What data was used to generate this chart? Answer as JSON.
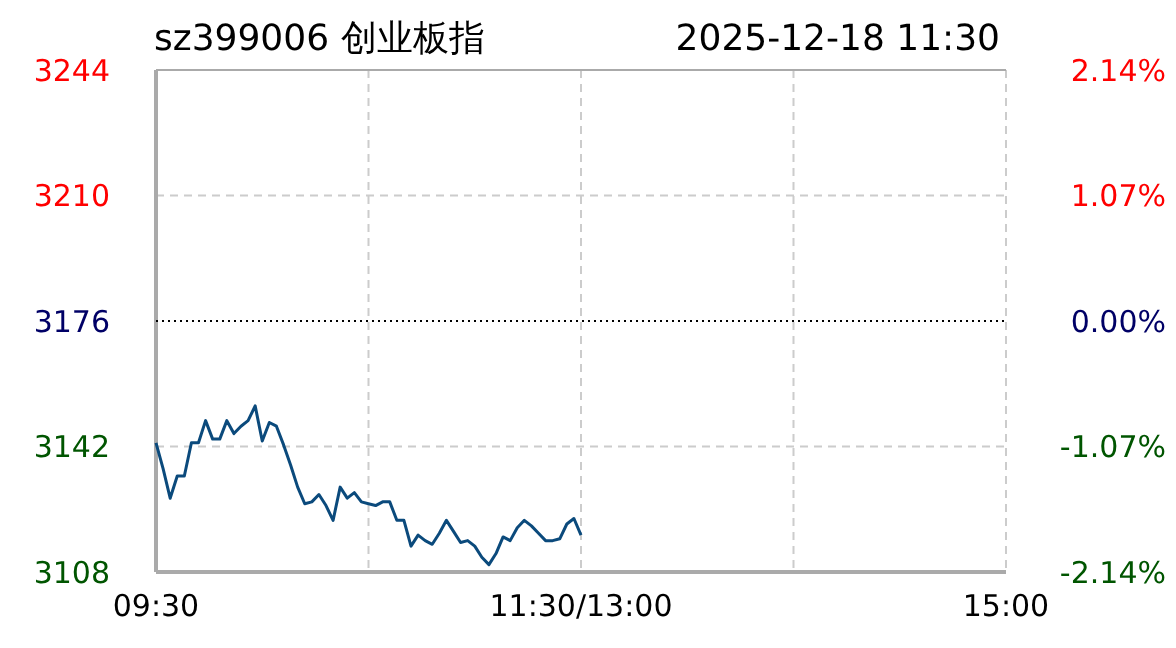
{
  "chart_data": {
    "type": "line",
    "title": "sz399006 创业板指",
    "subtitle": "2025-12-18  11:30",
    "categories": [
      "09:30",
      null,
      null,
      null,
      null,
      null,
      null,
      null,
      null,
      null,
      null,
      null,
      null,
      null,
      null,
      null,
      null,
      null,
      null,
      null,
      null,
      null,
      null,
      null,
      null,
      null,
      null,
      null,
      null,
      null,
      null,
      null,
      null,
      null,
      null,
      null,
      null,
      null,
      null,
      null,
      null,
      null,
      null,
      null,
      null,
      null,
      null,
      null,
      null,
      null,
      null,
      null,
      null,
      null,
      null,
      null,
      null,
      null,
      null,
      null,
      "11:30/13:00",
      null,
      null,
      null,
      null,
      null,
      null,
      null,
      null,
      null,
      null,
      null,
      null,
      null,
      null,
      null,
      null,
      null,
      null,
      null,
      null,
      null,
      null,
      null,
      null,
      null,
      null,
      null,
      null,
      null,
      null,
      null,
      null,
      null,
      null,
      null,
      null,
      null,
      null,
      null,
      null,
      null,
      null,
      null,
      null,
      null,
      null,
      null,
      null,
      null,
      null,
      null,
      null,
      null,
      null,
      null,
      null,
      null,
      null,
      null,
      "15:00"
    ],
    "series": [
      {
        "color": "#0b4a7c",
        "values": [
          3143,
          3136,
          3128,
          3134,
          3134,
          3143,
          3143,
          3149,
          3144,
          3144,
          3149,
          3145.5,
          3147.5,
          3149,
          3153,
          3143.5,
          3148.5,
          3147.5,
          3142.5,
          3137,
          3131,
          3126.5,
          3127,
          3129,
          3126,
          3122,
          3131,
          3128,
          3129.5,
          3127,
          3126.5,
          3126,
          3127,
          3127,
          3122,
          3122,
          3115,
          3118,
          3116.5,
          3115.5,
          3118.5,
          3122,
          3119,
          3116,
          3116.5,
          3115,
          3112,
          3110,
          3113,
          3117.5,
          3116.5,
          3120,
          3122,
          3120.5,
          3118.5,
          3116.5,
          3116.5,
          3117,
          3121,
          3122.5,
          3118,
          null,
          null,
          null,
          null,
          null,
          null,
          null,
          null,
          null,
          null,
          null,
          null,
          null,
          null,
          null,
          null,
          null,
          null,
          null,
          null,
          null,
          null,
          null,
          null,
          null,
          null,
          null,
          null,
          null,
          null,
          null,
          null,
          null,
          null,
          null,
          null,
          null,
          null,
          null,
          null,
          null,
          null,
          null,
          null,
          null,
          null,
          null,
          null,
          null,
          null,
          null,
          null,
          null,
          null,
          null,
          null,
          null,
          null,
          null,
          null
        ]
      }
    ],
    "ylim": [
      3108,
      3244
    ],
    "yticks": [
      3108,
      3142,
      3176,
      3210,
      3244
    ],
    "y2lim": [
      -2.14,
      2.14
    ],
    "y2ticks": [
      {
        "value": -2.14,
        "label": "-2.14%"
      },
      {
        "value": -1.07,
        "label": "-1.07%"
      },
      {
        "value": 0,
        "label": "0.00%"
      },
      {
        "value": 1.07,
        "label": "1.07%"
      },
      {
        "value": 2.14,
        "label": "2.14%"
      }
    ],
    "ref_lines": [
      {
        "axis": "y",
        "value": 3176,
        "color": "#000000",
        "line_style": "dotted"
      }
    ],
    "grid": true,
    "marker": "none",
    "line_style": "solid"
  }
}
